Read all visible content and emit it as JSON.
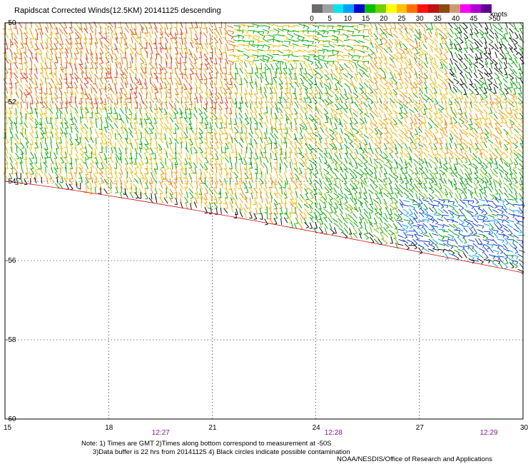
{
  "title": "Rapidscat Corrected Winds(12.5KM) 20141125 descending",
  "legend": {
    "units": "knots",
    "colors": [
      "#6b6b6b",
      "#a0a0a0",
      "#00e5f0",
      "#00a0ff",
      "#0000d0",
      "#00c000",
      "#70d000",
      "#ffff00",
      "#ffc000",
      "#ff7000",
      "#ff1010",
      "#c01010",
      "#8a4a10",
      "#cc9a70",
      "#ff00ff",
      "#b000d0",
      "#600090"
    ],
    "labels": [
      "0",
      "5",
      "10",
      "15",
      "20",
      "25",
      "30",
      "35",
      "40",
      "45",
      ">50"
    ]
  },
  "lat_labels": [
    "-50",
    "-52",
    "-54",
    "-56",
    "-58",
    "-60"
  ],
  "lon_labels": [
    "15",
    "18",
    "21",
    "24",
    "27",
    "30"
  ],
  "time_labels": [
    "12:27",
    "12:28",
    "12:29"
  ],
  "note": "Note: 1) Times are GMT 2)Times along bottom correspond to measurement at -50S\n      3)Data buffer is 22 hrs from 20141125 4) Black circles indicate possible contamination",
  "credit": "NOAA/NESDIS/Office of Research and Applications"
}
